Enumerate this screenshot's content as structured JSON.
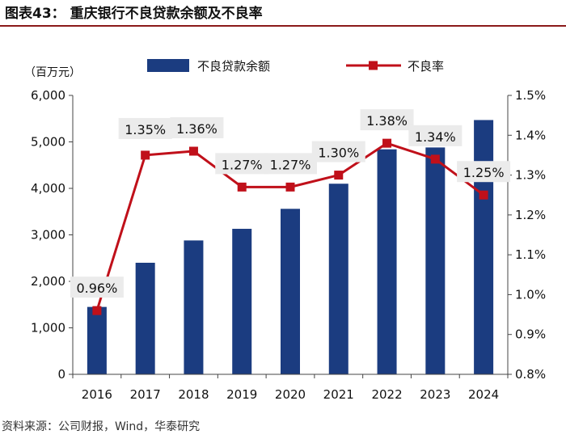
{
  "header": {
    "figure_title": "图表43：  重庆银行不良贷款余额及不良率"
  },
  "footer": {
    "source": "资料来源：公司财报，Wind，华泰研究"
  },
  "colors": {
    "bar": "#1b3c80",
    "line": "#c0101a",
    "label_bg": "#ebebeb",
    "rule": "#8b1a1a"
  },
  "chart_data": {
    "type": "bar+line",
    "title": "重庆银行不良贷款余额及不良率",
    "unit_label": "（百万元）",
    "categories": [
      "2016",
      "2017",
      "2018",
      "2019",
      "2020",
      "2021",
      "2022",
      "2023",
      "2024"
    ],
    "series": [
      {
        "name": "不良贷款余额",
        "type": "bar",
        "axis": "left",
        "values": [
          1450,
          2400,
          2880,
          3130,
          3560,
          4100,
          4840,
          4880,
          5470
        ]
      },
      {
        "name": "不良率",
        "type": "line",
        "axis": "right",
        "values": [
          0.96,
          1.35,
          1.36,
          1.27,
          1.27,
          1.3,
          1.38,
          1.34,
          1.25
        ],
        "labels": [
          "0.96%",
          "1.35%",
          "1.36%",
          "1.27%",
          "1.27%",
          "1.30%",
          "1.38%",
          "1.34%",
          "1.25%"
        ]
      }
    ],
    "left_axis": {
      "ylim": [
        0,
        6000
      ],
      "ticks": [
        0,
        1000,
        2000,
        3000,
        4000,
        5000,
        6000
      ],
      "tick_labels": [
        "0",
        "1,000",
        "2,000",
        "3,000",
        "4,000",
        "5,000",
        "6,000"
      ]
    },
    "right_axis": {
      "ylim": [
        0.8,
        1.5
      ],
      "ticks": [
        0.8,
        0.9,
        1.0,
        1.1,
        1.2,
        1.3,
        1.4,
        1.5
      ],
      "tick_labels": [
        "0.8%",
        "0.9%",
        "1.0%",
        "1.1%",
        "1.2%",
        "1.3%",
        "1.4%",
        "1.5%"
      ]
    },
    "legend_position": "top"
  }
}
